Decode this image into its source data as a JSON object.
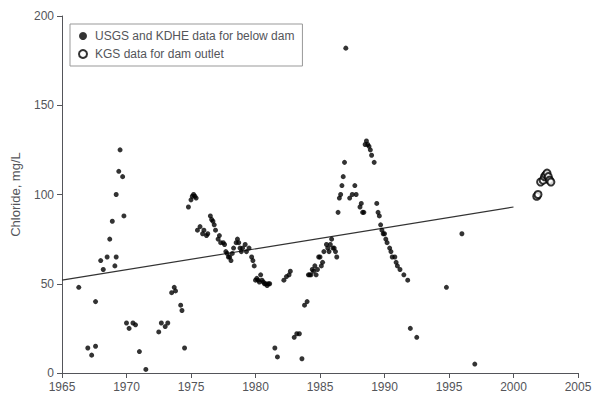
{
  "chart_data": {
    "type": "scatter",
    "ylabel": "Chloride, mg/L",
    "xlim": [
      1965,
      2005
    ],
    "ylim": [
      0,
      200
    ],
    "xticks": [
      1965,
      1970,
      1975,
      1980,
      1985,
      1990,
      1995,
      2000,
      2005
    ],
    "yticks": [
      0,
      50,
      100,
      150,
      200
    ],
    "grid": false,
    "legend": "upper left",
    "series": [
      {
        "name": "USGS and KDHE data for below dam",
        "type": "scatter",
        "color": "#000000",
        "marker": "circle",
        "x": [
          1966.3,
          1967.0,
          1967.3,
          1967.6,
          1967.6,
          1968.0,
          1968.2,
          1968.5,
          1968.7,
          1968.9,
          1969.1,
          1969.2,
          1969.2,
          1969.4,
          1969.5,
          1969.7,
          1969.8,
          1970.0,
          1970.2,
          1970.5,
          1970.7,
          1971.0,
          1971.5,
          1972.5,
          1972.7,
          1973.0,
          1973.2,
          1973.5,
          1973.7,
          1973.8,
          1974.2,
          1974.3,
          1974.5,
          1974.8,
          1975.0,
          1975.1,
          1975.2,
          1975.3,
          1975.4,
          1975.5,
          1975.7,
          1975.9,
          1976.0,
          1976.2,
          1976.3,
          1976.5,
          1976.6,
          1976.7,
          1976.8,
          1976.9,
          1977.1,
          1977.2,
          1977.3,
          1977.5,
          1977.6,
          1977.7,
          1977.8,
          1977.9,
          1978.0,
          1978.1,
          1978.2,
          1978.3,
          1978.5,
          1978.6,
          1978.7,
          1978.8,
          1978.9,
          1979.0,
          1979.2,
          1979.3,
          1979.5,
          1979.7,
          1979.8,
          1979.9,
          1980.0,
          1980.1,
          1980.2,
          1980.3,
          1980.4,
          1980.5,
          1980.6,
          1980.7,
          1980.8,
          1980.9,
          1981.0,
          1981.1,
          1981.5,
          1981.7,
          1982.2,
          1982.4,
          1982.6,
          1982.7,
          1983.0,
          1983.2,
          1983.4,
          1983.6,
          1983.8,
          1984.0,
          1984.1,
          1984.2,
          1984.3,
          1984.4,
          1984.5,
          1984.6,
          1984.7,
          1984.8,
          1984.9,
          1985.0,
          1985.1,
          1985.2,
          1985.3,
          1985.5,
          1985.6,
          1985.7,
          1985.8,
          1985.9,
          1986.0,
          1986.1,
          1986.2,
          1986.3,
          1986.4,
          1986.5,
          1986.6,
          1986.7,
          1986.8,
          1986.9,
          1987.0,
          1987.3,
          1987.5,
          1987.7,
          1987.8,
          1988.1,
          1988.2,
          1988.3,
          1988.4,
          1988.5,
          1988.6,
          1988.7,
          1988.8,
          1988.9,
          1989.0,
          1989.2,
          1989.4,
          1989.5,
          1989.6,
          1989.7,
          1989.8,
          1989.9,
          1990.0,
          1990.1,
          1990.2,
          1990.4,
          1990.5,
          1990.6,
          1990.8,
          1990.9,
          1991.0,
          1991.2,
          1991.5,
          1991.8,
          1992.0,
          1992.5,
          1994.8,
          1996.0,
          1997.0
        ],
        "values": [
          48,
          14,
          10,
          40,
          15,
          63,
          58,
          65,
          75,
          85,
          60,
          65,
          100,
          113,
          125,
          110,
          88,
          28,
          25,
          28,
          27,
          12,
          2,
          23,
          28,
          26,
          28,
          45,
          48,
          46,
          38,
          35,
          14,
          93,
          97,
          99,
          100,
          99,
          98,
          80,
          82,
          78,
          80,
          77,
          78,
          88,
          86,
          85,
          83,
          80,
          75,
          77,
          73,
          73,
          72,
          68,
          67,
          65,
          65,
          63,
          67,
          70,
          73,
          75,
          73,
          70,
          68,
          70,
          72,
          68,
          70,
          65,
          63,
          60,
          52,
          53,
          52,
          51,
          55,
          52,
          51,
          50,
          50,
          49,
          50,
          50,
          14,
          9,
          52,
          54,
          55,
          57,
          20,
          22,
          22,
          8,
          38,
          40,
          55,
          55,
          55,
          58,
          57,
          60,
          55,
          58,
          65,
          65,
          60,
          62,
          68,
          72,
          70,
          68,
          72,
          75,
          70,
          70,
          68,
          65,
          90,
          98,
          100,
          105,
          110,
          118,
          182,
          98,
          100,
          105,
          100,
          93,
          95,
          90,
          90,
          128,
          130,
          128,
          127,
          125,
          122,
          118,
          95,
          90,
          88,
          83,
          80,
          78,
          78,
          75,
          73,
          70,
          68,
          65,
          65,
          62,
          60,
          58,
          55,
          52,
          25,
          20,
          48,
          78,
          5
        ]
      },
      {
        "name": "KGS data for dam outlet",
        "type": "scatter",
        "color": "#000000",
        "marker": "ring",
        "x": [
          2001.8,
          2001.9,
          2002.1,
          2002.3,
          2002.4,
          2002.5,
          2002.6,
          2002.7,
          2002.8,
          2002.9
        ],
        "values": [
          99,
          100,
          107,
          108,
          110,
          111,
          112,
          110,
          108,
          107
        ]
      },
      {
        "type": "line",
        "color": "#333333",
        "x": [
          1965,
          2000
        ],
        "values": [
          52,
          93
        ]
      }
    ]
  }
}
